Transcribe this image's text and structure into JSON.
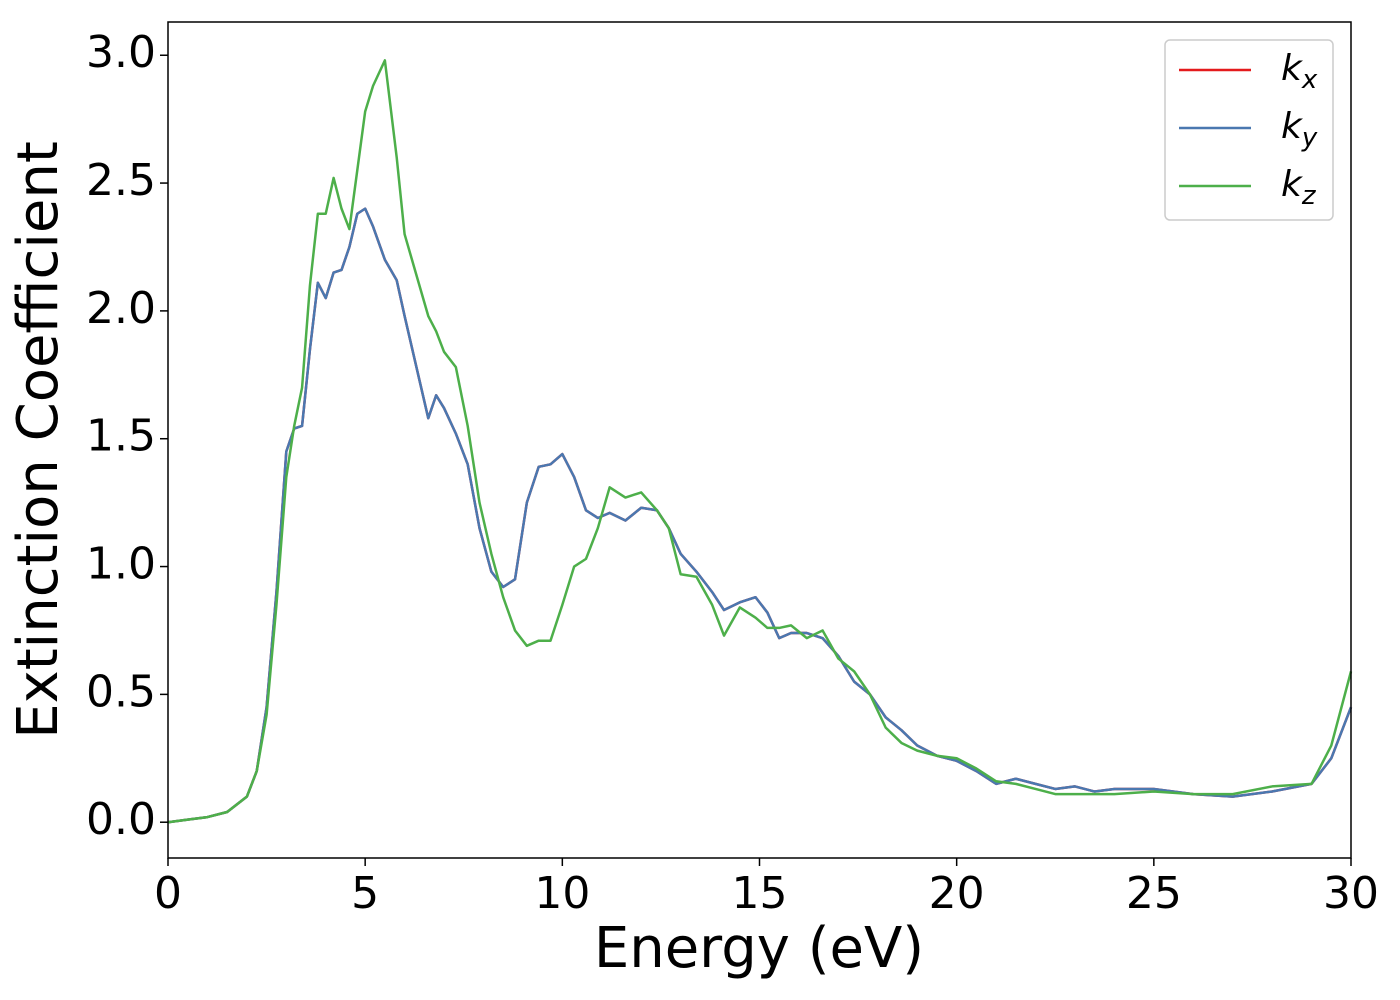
{
  "chart_data": {
    "type": "line",
    "x_label": "Energy (eV)",
    "y_label": "Extinction Coefficient",
    "x": [
      0,
      0.5,
      1,
      1.5,
      2,
      2.25,
      2.5,
      2.75,
      3.0,
      3.2,
      3.4,
      3.6,
      3.8,
      4.0,
      4.2,
      4.4,
      4.6,
      4.8,
      5.0,
      5.2,
      5.5,
      5.8,
      6.0,
      6.3,
      6.6,
      6.8,
      7.0,
      7.3,
      7.6,
      7.9,
      8.2,
      8.5,
      8.8,
      9.1,
      9.4,
      9.7,
      10.0,
      10.3,
      10.6,
      10.9,
      11.2,
      11.6,
      12.0,
      12.4,
      12.7,
      13.0,
      13.4,
      13.8,
      14.1,
      14.5,
      14.9,
      15.2,
      15.5,
      15.8,
      16.2,
      16.6,
      17.0,
      17.4,
      17.8,
      18.2,
      18.6,
      19.0,
      19.5,
      20.0,
      20.5,
      21.0,
      21.5,
      22.0,
      22.5,
      23.0,
      23.5,
      24.0,
      25.0,
      26.0,
      27.0,
      28.0,
      29.0,
      29.5,
      30.0
    ],
    "series": [
      {
        "name": "kx",
        "color": "#e41a1c",
        "values": [
          0,
          0.01,
          0.02,
          0.04,
          0.1,
          0.2,
          0.45,
          0.9,
          1.45,
          1.54,
          1.55,
          1.85,
          2.11,
          2.05,
          2.15,
          2.16,
          2.25,
          2.38,
          2.4,
          2.33,
          2.2,
          2.12,
          1.98,
          1.78,
          1.58,
          1.67,
          1.62,
          1.52,
          1.4,
          1.15,
          0.98,
          0.92,
          0.95,
          1.25,
          1.39,
          1.4,
          1.44,
          1.35,
          1.22,
          1.19,
          1.21,
          1.18,
          1.23,
          1.22,
          1.15,
          1.05,
          0.98,
          0.9,
          0.83,
          0.86,
          0.88,
          0.82,
          0.72,
          0.74,
          0.74,
          0.72,
          0.65,
          0.55,
          0.5,
          0.41,
          0.36,
          0.3,
          0.26,
          0.24,
          0.2,
          0.15,
          0.17,
          0.15,
          0.13,
          0.14,
          0.12,
          0.13,
          0.13,
          0.11,
          0.1,
          0.12,
          0.15,
          0.25,
          0.45
        ]
      },
      {
        "name": "ky",
        "color": "#4a78b0",
        "values": [
          0,
          0.01,
          0.02,
          0.04,
          0.1,
          0.2,
          0.45,
          0.9,
          1.45,
          1.54,
          1.55,
          1.85,
          2.11,
          2.05,
          2.15,
          2.16,
          2.25,
          2.38,
          2.4,
          2.33,
          2.2,
          2.12,
          1.98,
          1.78,
          1.58,
          1.67,
          1.62,
          1.52,
          1.4,
          1.15,
          0.98,
          0.92,
          0.95,
          1.25,
          1.39,
          1.4,
          1.44,
          1.35,
          1.22,
          1.19,
          1.21,
          1.18,
          1.23,
          1.22,
          1.15,
          1.05,
          0.98,
          0.9,
          0.83,
          0.86,
          0.88,
          0.82,
          0.72,
          0.74,
          0.74,
          0.72,
          0.65,
          0.55,
          0.5,
          0.41,
          0.36,
          0.3,
          0.26,
          0.24,
          0.2,
          0.15,
          0.17,
          0.15,
          0.13,
          0.14,
          0.12,
          0.13,
          0.13,
          0.11,
          0.1,
          0.12,
          0.15,
          0.25,
          0.45
        ]
      },
      {
        "name": "kz",
        "color": "#4daf4a",
        "values": [
          0,
          0.01,
          0.02,
          0.04,
          0.1,
          0.2,
          0.42,
          0.85,
          1.35,
          1.55,
          1.7,
          2.1,
          2.38,
          2.38,
          2.52,
          2.4,
          2.32,
          2.55,
          2.78,
          2.88,
          2.98,
          2.6,
          2.3,
          2.14,
          1.98,
          1.92,
          1.84,
          1.78,
          1.55,
          1.25,
          1.05,
          0.88,
          0.75,
          0.69,
          0.71,
          0.71,
          0.85,
          1.0,
          1.03,
          1.15,
          1.31,
          1.27,
          1.29,
          1.22,
          1.15,
          0.97,
          0.96,
          0.85,
          0.73,
          0.84,
          0.8,
          0.76,
          0.76,
          0.77,
          0.72,
          0.75,
          0.64,
          0.59,
          0.5,
          0.37,
          0.31,
          0.28,
          0.26,
          0.25,
          0.21,
          0.16,
          0.15,
          0.13,
          0.11,
          0.11,
          0.11,
          0.11,
          0.12,
          0.11,
          0.11,
          0.14,
          0.15,
          0.3,
          0.59
        ]
      }
    ],
    "xlim": [
      0,
      30
    ],
    "xticks": [
      0,
      5,
      10,
      15,
      20,
      25,
      30
    ],
    "ylim": [
      -0.14,
      3.13
    ],
    "yticks": [
      {
        "value": 0,
        "label": "0.0"
      },
      0.5,
      {
        "value": 1,
        "label": "1.0"
      },
      1.5,
      {
        "value": 2,
        "label": "2.0"
      },
      2.5,
      {
        "value": 3,
        "label": "3.0"
      }
    ],
    "grid": false,
    "legend": "upper right"
  }
}
